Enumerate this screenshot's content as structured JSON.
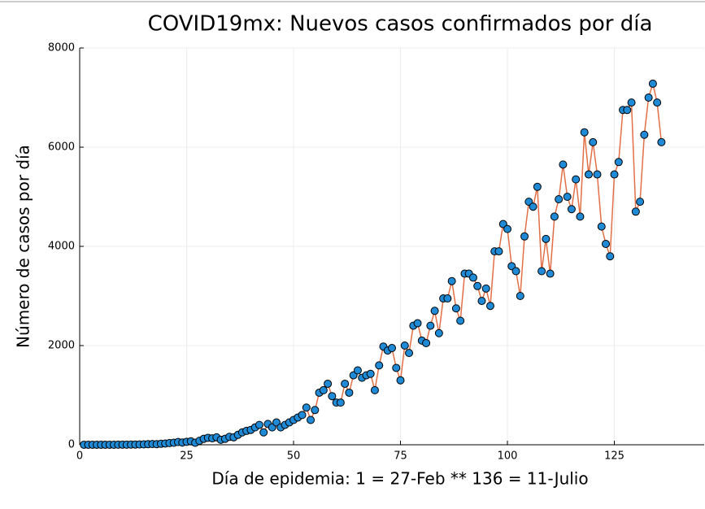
{
  "chart_data": {
    "type": "scatter",
    "title": "COVID19mx: Nuevos casos confirmados por día",
    "xlabel": "Día de epidemia: 1 = 27-Feb ** 136 = 11-Julio",
    "ylabel": "Número de casos por día",
    "xlim": [
      0,
      146
    ],
    "ylim": [
      0,
      8000
    ],
    "xticks": [
      0,
      25,
      50,
      75,
      100,
      125
    ],
    "yticks": [
      0,
      2000,
      4000,
      6000,
      8000
    ],
    "grid": true,
    "line_color": "#e26f46",
    "marker_color": "#1f8ad6",
    "x": [
      1,
      2,
      3,
      4,
      5,
      6,
      7,
      8,
      9,
      10,
      11,
      12,
      13,
      14,
      15,
      16,
      17,
      18,
      19,
      20,
      21,
      22,
      23,
      24,
      25,
      26,
      27,
      28,
      29,
      30,
      31,
      32,
      33,
      34,
      35,
      36,
      37,
      38,
      39,
      40,
      41,
      42,
      43,
      44,
      45,
      46,
      47,
      48,
      49,
      50,
      51,
      52,
      53,
      54,
      55,
      56,
      57,
      58,
      59,
      60,
      61,
      62,
      63,
      64,
      65,
      66,
      67,
      68,
      69,
      70,
      71,
      72,
      73,
      74,
      75,
      76,
      77,
      78,
      79,
      80,
      81,
      82,
      83,
      84,
      85,
      86,
      87,
      88,
      89,
      90,
      91,
      92,
      93,
      94,
      95,
      96,
      97,
      98,
      99,
      100,
      101,
      102,
      103,
      104,
      105,
      106,
      107,
      108,
      109,
      110,
      111,
      112,
      113,
      114,
      115,
      116,
      117,
      118,
      119,
      120,
      121,
      122,
      123,
      124,
      125,
      126,
      127,
      128,
      129,
      130,
      131,
      132,
      133,
      134,
      135,
      136
    ],
    "values": [
      1,
      1,
      1,
      1,
      1,
      1,
      1,
      1,
      2,
      3,
      2,
      4,
      5,
      6,
      8,
      12,
      15,
      12,
      20,
      25,
      35,
      40,
      55,
      45,
      60,
      70,
      40,
      80,
      120,
      140,
      130,
      150,
      100,
      120,
      160,
      150,
      200,
      250,
      280,
      300,
      350,
      400,
      250,
      420,
      350,
      450,
      350,
      400,
      450,
      500,
      550,
      600,
      750,
      500,
      700,
      1050,
      1100,
      1230,
      980,
      850,
      850,
      1230,
      1050,
      1400,
      1500,
      1350,
      1400,
      1430,
      1100,
      1600,
      1980,
      1900,
      1950,
      1550,
      1300,
      2000,
      1850,
      2400,
      2450,
      2100,
      2050,
      2400,
      2700,
      2250,
      2950,
      2950,
      3300,
      2750,
      2500,
      3450,
      3450,
      3370,
      3200,
      2900,
      3150,
      2800,
      3900,
      3900,
      4450,
      4350,
      3600,
      3500,
      3000,
      4200,
      4900,
      4800,
      5200,
      3500,
      4150,
      3450,
      4600,
      4950,
      5650,
      5000,
      4750,
      5350,
      4600,
      6300,
      5450,
      6100,
      5450,
      4400,
      4050,
      3800,
      5450,
      5700,
      6750,
      6750,
      6900,
      4700,
      4900,
      6250,
      7000,
      7280,
      6900,
      6100
    ]
  }
}
